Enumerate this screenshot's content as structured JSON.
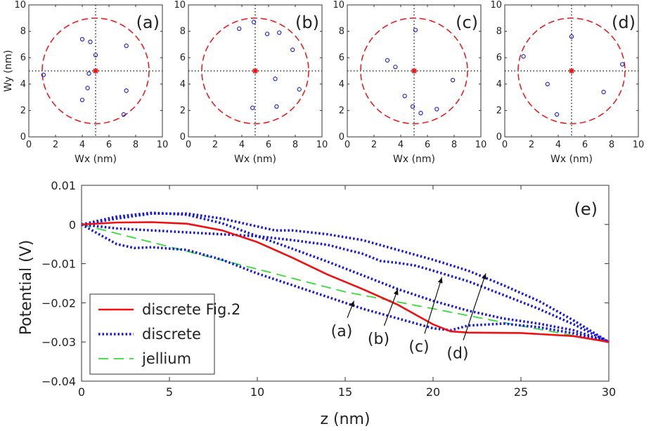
{
  "chart_data": [
    {
      "type": "scatter",
      "panel": "(a)",
      "xlabel": "Wx (nm)",
      "ylabel": "Wy (nm)",
      "xlim": [
        0,
        10
      ],
      "ylim": [
        0,
        10
      ],
      "xticks": [
        "0",
        "2",
        "4",
        "6",
        "8",
        "10"
      ],
      "yticks": [
        "0",
        "2",
        "4",
        "6",
        "8",
        "10"
      ],
      "center": [
        5,
        5
      ],
      "circle_radius": 4,
      "points": [
        [
          1.1,
          4.7
        ],
        [
          4.0,
          7.4
        ],
        [
          4.6,
          7.2
        ],
        [
          5.0,
          6.2
        ],
        [
          4.5,
          4.8
        ],
        [
          4.4,
          3.7
        ],
        [
          4.0,
          2.8
        ],
        [
          7.3,
          6.9
        ],
        [
          7.3,
          3.5
        ],
        [
          7.1,
          1.7
        ]
      ]
    },
    {
      "type": "scatter",
      "panel": "(b)",
      "xlabel": "Wx (nm)",
      "ylabel": "",
      "xlim": [
        0,
        10
      ],
      "ylim": [
        0,
        10
      ],
      "xticks": [
        "0",
        "2",
        "4",
        "6",
        "8",
        "10"
      ],
      "yticks": [
        "0",
        "2",
        "4",
        "6",
        "8",
        "10"
      ],
      "center": [
        5,
        5
      ],
      "circle_radius": 4,
      "points": [
        [
          3.8,
          8.2
        ],
        [
          4.9,
          8.7
        ],
        [
          5.9,
          7.8
        ],
        [
          6.8,
          7.9
        ],
        [
          7.8,
          6.6
        ],
        [
          6.5,
          4.4
        ],
        [
          8.3,
          3.6
        ],
        [
          4.8,
          2.2
        ],
        [
          6.6,
          2.3
        ]
      ]
    },
    {
      "type": "scatter",
      "panel": "(c)",
      "xlabel": "Wx (nm)",
      "ylabel": "",
      "xlim": [
        0,
        10
      ],
      "ylim": [
        0,
        10
      ],
      "xticks": [
        "0",
        "2",
        "4",
        "6",
        "8",
        "10"
      ],
      "yticks": [
        "0",
        "2",
        "4",
        "6",
        "8",
        "10"
      ],
      "center": [
        5,
        5
      ],
      "circle_radius": 4,
      "points": [
        [
          5.1,
          8.1
        ],
        [
          3.0,
          5.8
        ],
        [
          3.6,
          5.3
        ],
        [
          4.3,
          3.1
        ],
        [
          4.9,
          2.3
        ],
        [
          5.5,
          1.8
        ],
        [
          6.7,
          2.1
        ],
        [
          7.9,
          4.3
        ]
      ]
    },
    {
      "type": "scatter",
      "panel": "(d)",
      "xlabel": "Wx (nm)",
      "ylabel": "",
      "xlim": [
        0,
        10
      ],
      "ylim": [
        0,
        10
      ],
      "xticks": [
        "0",
        "2",
        "4",
        "6",
        "8",
        "10"
      ],
      "yticks": [
        "0",
        "2",
        "4",
        "6",
        "8",
        "10"
      ],
      "center": [
        5,
        5
      ],
      "circle_radius": 4,
      "points": [
        [
          1.4,
          6.1
        ],
        [
          5.0,
          7.6
        ],
        [
          3.2,
          4.0
        ],
        [
          3.9,
          1.7
        ],
        [
          7.4,
          3.4
        ],
        [
          8.8,
          5.5
        ]
      ]
    },
    {
      "type": "line",
      "panel": "(e)",
      "xlabel": "z (nm)",
      "ylabel": "Potential (V)",
      "xlim": [
        0,
        30
      ],
      "ylim": [
        -0.04,
        0.01
      ],
      "xticks": [
        "0",
        "5",
        "10",
        "15",
        "20",
        "25",
        "30"
      ],
      "yticks": [
        "-0.04",
        "-0.03",
        "-0.02",
        "-0.01",
        "0",
        "0.01"
      ],
      "legend": {
        "position": "bottom-left",
        "entries": [
          "discrete Fig.2",
          "discrete",
          "jellium"
        ]
      },
      "series": [
        {
          "name": "discrete Fig.2",
          "style": "solid",
          "color": "#ee1111",
          "points": [
            [
              0,
              0
            ],
            [
              2,
              0.0005
            ],
            [
              4,
              0.0006
            ],
            [
              6,
              0.0002
            ],
            [
              8,
              -0.0015
            ],
            [
              10,
              -0.0045
            ],
            [
              12,
              -0.0085
            ],
            [
              14,
              -0.0128
            ],
            [
              16,
              -0.0165
            ],
            [
              18,
              -0.0205
            ],
            [
              20,
              -0.0255
            ],
            [
              21,
              -0.0273
            ],
            [
              22,
              -0.0276
            ],
            [
              25,
              -0.0277
            ],
            [
              28,
              -0.0285
            ],
            [
              30,
              -0.03
            ]
          ]
        },
        {
          "name": "discrete",
          "style": "dotted",
          "color": "#1515e6",
          "label": "(a)",
          "points": [
            [
              0,
              0
            ],
            [
              1,
              -0.0025
            ],
            [
              2,
              -0.005
            ],
            [
              3,
              -0.006
            ],
            [
              4,
              -0.0058
            ],
            [
              6,
              -0.0065
            ],
            [
              8,
              -0.009
            ],
            [
              10,
              -0.0125
            ],
            [
              12,
              -0.0155
            ],
            [
              14,
              -0.0185
            ],
            [
              16,
              -0.0215
            ],
            [
              18,
              -0.024
            ],
            [
              20,
              -0.0265
            ],
            [
              21,
              -0.027
            ],
            [
              22,
              -0.0258
            ],
            [
              24,
              -0.0253
            ],
            [
              26,
              -0.0262
            ],
            [
              28,
              -0.0278
            ],
            [
              30,
              -0.03
            ]
          ]
        },
        {
          "name": "discrete",
          "style": "dotted",
          "color": "#1515e6",
          "label": "(b)",
          "points": [
            [
              0,
              0
            ],
            [
              2,
              0.002
            ],
            [
              4,
              0.003
            ],
            [
              6,
              0.0025
            ],
            [
              8,
              0.0003
            ],
            [
              10,
              -0.003
            ],
            [
              12,
              -0.0062
            ],
            [
              14,
              -0.0095
            ],
            [
              16,
              -0.013
            ],
            [
              18,
              -0.0165
            ],
            [
              20,
              -0.0195
            ],
            [
              22,
              -0.022
            ],
            [
              24,
              -0.024
            ],
            [
              26,
              -0.0253
            ],
            [
              28,
              -0.027
            ],
            [
              30,
              -0.03
            ]
          ]
        },
        {
          "name": "discrete",
          "style": "dotted",
          "color": "#1515e6",
          "label": "(c)",
          "points": [
            [
              0,
              0
            ],
            [
              2,
              -0.001
            ],
            [
              4,
              -0.0015
            ],
            [
              6,
              -0.002
            ],
            [
              8,
              -0.0025
            ],
            [
              10,
              -0.003
            ],
            [
              12,
              -0.004
            ],
            [
              14,
              -0.0052
            ],
            [
              16,
              -0.0075
            ],
            [
              17,
              -0.0093
            ],
            [
              18,
              -0.0098
            ],
            [
              19,
              -0.0105
            ],
            [
              20,
              -0.0118
            ],
            [
              22,
              -0.0145
            ],
            [
              24,
              -0.018
            ],
            [
              26,
              -0.0215
            ],
            [
              28,
              -0.0255
            ],
            [
              30,
              -0.03
            ]
          ]
        },
        {
          "name": "discrete",
          "style": "dotted",
          "color": "#1515e6",
          "label": "(d)",
          "points": [
            [
              0,
              0
            ],
            [
              2,
              0.0015
            ],
            [
              4,
              0.0028
            ],
            [
              6,
              0.0028
            ],
            [
              8,
              0.0015
            ],
            [
              10,
              -0.0005
            ],
            [
              11,
              -0.0015
            ],
            [
              12,
              -0.0015
            ],
            [
              14,
              -0.0025
            ],
            [
              16,
              -0.004
            ],
            [
              18,
              -0.0065
            ],
            [
              20,
              -0.009
            ],
            [
              22,
              -0.0118
            ],
            [
              24,
              -0.0155
            ],
            [
              26,
              -0.0195
            ],
            [
              28,
              -0.0245
            ],
            [
              30,
              -0.03
            ]
          ]
        },
        {
          "name": "jellium",
          "style": "dashed",
          "color": "#33dd33",
          "points": [
            [
              0,
              0
            ],
            [
              5,
              -0.0057
            ],
            [
              10,
              -0.0114
            ],
            [
              15,
              -0.0172
            ],
            [
              20,
              -0.0215
            ],
            [
              25,
              -0.0259
            ],
            [
              30,
              -0.03
            ]
          ]
        }
      ],
      "annotations": [
        {
          "text": "(a)",
          "arrow_to": [
            15.5,
            -0.0195
          ],
          "label_at": [
            14.8,
            -0.0285
          ]
        },
        {
          "text": "(b)",
          "arrow_to": [
            18.0,
            -0.0165
          ],
          "label_at": [
            16.9,
            -0.0305
          ]
        },
        {
          "text": "(c)",
          "arrow_to": [
            20.5,
            -0.0135
          ],
          "label_at": [
            19.2,
            -0.0325
          ]
        },
        {
          "text": "(d)",
          "arrow_to": [
            23.0,
            -0.0125
          ],
          "label_at": [
            21.4,
            -0.0342
          ]
        }
      ]
    }
  ]
}
